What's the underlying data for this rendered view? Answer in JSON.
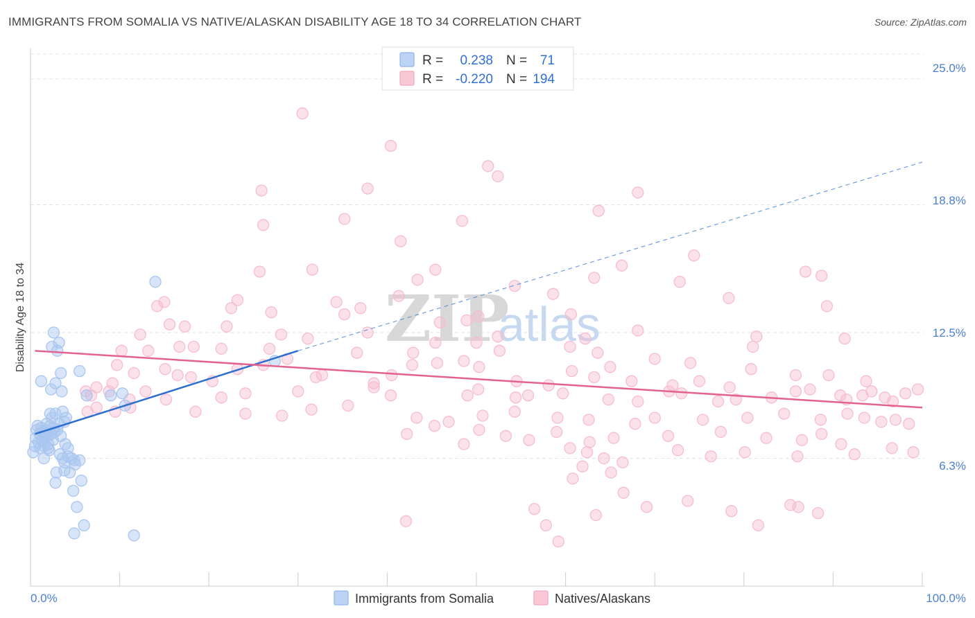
{
  "title": "IMMIGRANTS FROM SOMALIA VS NATIVE/ALASKAN DISABILITY AGE 18 TO 34 CORRELATION CHART",
  "source": "Source: ZipAtlas.com",
  "watermark": {
    "zip": "ZIP",
    "atlas": "atlas"
  },
  "legend": {
    "rows": [
      {
        "r_label": "R =",
        "r_value": "0.238",
        "n_label": "N =",
        "n_value": "71",
        "color": "#8fb5ec"
      },
      {
        "r_label": "R =",
        "r_value": "-0.220",
        "n_label": "N =",
        "n_value": "194",
        "color": "#f2a7be"
      }
    ]
  },
  "bottom_legend": [
    {
      "label": "Immigrants from Somalia",
      "color": "#8fb5ec"
    },
    {
      "label": "Natives/Alaskans",
      "color": "#f2a7be"
    }
  ],
  "chart_data": {
    "type": "scatter",
    "title": "IMMIGRANTS FROM SOMALIA VS NATIVE/ALASKAN DISABILITY AGE 18 TO 34 CORRELATION CHART",
    "xlabel": "",
    "ylabel": "Disability Age 18 to 34",
    "xlim": [
      0,
      100
    ],
    "ylim": [
      0,
      26.5
    ],
    "x_tick_labels": [
      "0.0%",
      "100.0%"
    ],
    "y_ticks": [
      6.3,
      12.5,
      18.8,
      25.0
    ],
    "y_tick_labels": [
      "6.3%",
      "12.5%",
      "18.8%",
      "25.0%"
    ],
    "grid": true,
    "legend_position": "top-center",
    "series": [
      {
        "name": "Immigrants from Somalia",
        "color": "#4a86d8",
        "fill": "#a9c6f0",
        "trend": {
          "x0": 0.5,
          "y0": 7.5,
          "x1": 30,
          "y1": 11.6,
          "dash_x1": 100,
          "dash_y1": 20.9
        },
        "points": [
          [
            0.3,
            6.6
          ],
          [
            0.5,
            6.9
          ],
          [
            0.6,
            7.3
          ],
          [
            0.7,
            7.7
          ],
          [
            0.8,
            7.9
          ],
          [
            0.9,
            7.1
          ],
          [
            1.0,
            7.5
          ],
          [
            1.1,
            6.8
          ],
          [
            1.2,
            7.8
          ],
          [
            1.3,
            7.2
          ],
          [
            1.4,
            7.6
          ],
          [
            1.5,
            6.9
          ],
          [
            1.6,
            7.3
          ],
          [
            1.7,
            7.7
          ],
          [
            1.8,
            8.0
          ],
          [
            1.9,
            7.4
          ],
          [
            2.0,
            7.0
          ],
          [
            2.1,
            6.7
          ],
          [
            2.2,
            7.9
          ],
          [
            2.3,
            7.5
          ],
          [
            2.4,
            8.3
          ],
          [
            2.5,
            7.2
          ],
          [
            2.6,
            7.8
          ],
          [
            2.7,
            7.6
          ],
          [
            2.8,
            8.5
          ],
          [
            3.0,
            7.7
          ],
          [
            3.2,
            8.0
          ],
          [
            3.4,
            7.4
          ],
          [
            1.2,
            10.1
          ],
          [
            2.3,
            9.7
          ],
          [
            2.4,
            11.8
          ],
          [
            2.6,
            12.5
          ],
          [
            2.8,
            10.0
          ],
          [
            3.0,
            11.6
          ],
          [
            3.2,
            12.0
          ],
          [
            3.4,
            10.5
          ],
          [
            3.5,
            9.6
          ],
          [
            3.6,
            8.6
          ],
          [
            3.8,
            8.1
          ],
          [
            4.0,
            8.3
          ],
          [
            3.9,
            7.0
          ],
          [
            4.2,
            6.8
          ],
          [
            3.6,
            6.3
          ],
          [
            3.8,
            6.1
          ],
          [
            4.2,
            6.4
          ],
          [
            4.6,
            6.3
          ],
          [
            4.9,
            6.2
          ],
          [
            5.0,
            6.0
          ],
          [
            5.5,
            6.2
          ],
          [
            3.8,
            5.7
          ],
          [
            4.4,
            5.6
          ],
          [
            2.9,
            5.6
          ],
          [
            2.8,
            5.1
          ],
          [
            5.7,
            5.2
          ],
          [
            4.8,
            4.7
          ],
          [
            5.2,
            3.9
          ],
          [
            6.0,
            3.0
          ],
          [
            4.9,
            2.6
          ],
          [
            11.6,
            2.5
          ],
          [
            5.5,
            10.6
          ],
          [
            6.3,
            9.4
          ],
          [
            9.0,
            9.4
          ],
          [
            10.3,
            9.5
          ],
          [
            10.6,
            8.9
          ],
          [
            14.0,
            15.0
          ],
          [
            27.4,
            11.1
          ],
          [
            2.0,
            6.8
          ],
          [
            1.5,
            6.3
          ],
          [
            3.3,
            6.5
          ],
          [
            2.2,
            8.5
          ],
          [
            1.7,
            7.5
          ]
        ]
      },
      {
        "name": "Natives/Alaskans",
        "color": "#e8709a",
        "fill": "#f6bdd0",
        "trend": {
          "x0": 0.5,
          "y0": 11.6,
          "x1": 100,
          "y1": 8.8
        },
        "points": [
          [
            30.5,
            23.3
          ],
          [
            40.4,
            21.7
          ],
          [
            52.4,
            20.2
          ],
          [
            51.3,
            20.7
          ],
          [
            25.9,
            19.5
          ],
          [
            37.8,
            19.6
          ],
          [
            68.1,
            19.4
          ],
          [
            63.7,
            18.5
          ],
          [
            35.2,
            18.1
          ],
          [
            48.4,
            18.0
          ],
          [
            26.1,
            17.8
          ],
          [
            41.5,
            17.0
          ],
          [
            74.4,
            16.3
          ],
          [
            66.3,
            15.8
          ],
          [
            25.7,
            15.5
          ],
          [
            31.6,
            15.6
          ],
          [
            45.4,
            15.6
          ],
          [
            54.3,
            14.8
          ],
          [
            58.6,
            14.4
          ],
          [
            43.4,
            15.1
          ],
          [
            63.2,
            15.2
          ],
          [
            72.8,
            15.0
          ],
          [
            86.9,
            15.5
          ],
          [
            88.7,
            15.3
          ],
          [
            23.2,
            14.1
          ],
          [
            15.0,
            14.0
          ],
          [
            14.2,
            13.8
          ],
          [
            22.5,
            13.7
          ],
          [
            27.0,
            13.5
          ],
          [
            34.3,
            14.0
          ],
          [
            37.0,
            13.7
          ],
          [
            41.3,
            14.3
          ],
          [
            50.2,
            13.3
          ],
          [
            35.2,
            13.4
          ],
          [
            48.9,
            13.1
          ],
          [
            45.9,
            13.0
          ],
          [
            60.6,
            13.4
          ],
          [
            68.1,
            12.6
          ],
          [
            78.3,
            14.2
          ],
          [
            89.3,
            13.8
          ],
          [
            15.6,
            12.9
          ],
          [
            12.3,
            12.4
          ],
          [
            17.3,
            12.8
          ],
          [
            22.0,
            12.8
          ],
          [
            28.1,
            12.4
          ],
          [
            31.1,
            12.2
          ],
          [
            37.8,
            12.5
          ],
          [
            52.4,
            12.3
          ],
          [
            45.4,
            12.0
          ],
          [
            50.0,
            12.0
          ],
          [
            62.2,
            12.2
          ],
          [
            16.7,
            11.8
          ],
          [
            18.3,
            11.8
          ],
          [
            21.4,
            11.7
          ],
          [
            10.2,
            11.6
          ],
          [
            13.2,
            11.6
          ],
          [
            26.8,
            11.7
          ],
          [
            28.8,
            11.2
          ],
          [
            36.6,
            11.5
          ],
          [
            42.9,
            11.5
          ],
          [
            48.6,
            11.1
          ],
          [
            52.6,
            11.6
          ],
          [
            60.5,
            11.8
          ],
          [
            63.6,
            11.5
          ],
          [
            70.0,
            11.2
          ],
          [
            74.0,
            11.0
          ],
          [
            81.0,
            11.8
          ],
          [
            81.4,
            12.3
          ],
          [
            91.3,
            12.2
          ],
          [
            9.7,
            10.9
          ],
          [
            11.6,
            10.5
          ],
          [
            15.1,
            10.7
          ],
          [
            16.5,
            10.4
          ],
          [
            18.0,
            10.3
          ],
          [
            20.4,
            10.1
          ],
          [
            23.2,
            10.7
          ],
          [
            26.1,
            10.9
          ],
          [
            32.0,
            10.3
          ],
          [
            32.7,
            10.4
          ],
          [
            38.5,
            10.0
          ],
          [
            40.5,
            10.4
          ],
          [
            42.8,
            10.9
          ],
          [
            45.6,
            11.0
          ],
          [
            50.3,
            10.8
          ],
          [
            54.5,
            10.1
          ],
          [
            58.1,
            9.9
          ],
          [
            60.7,
            10.6
          ],
          [
            63.2,
            10.3
          ],
          [
            65.0,
            10.8
          ],
          [
            67.4,
            10.1
          ],
          [
            72.0,
            9.9
          ],
          [
            75.0,
            10.1
          ],
          [
            78.4,
            9.8
          ],
          [
            80.8,
            10.7
          ],
          [
            85.8,
            10.4
          ],
          [
            89.5,
            10.4
          ],
          [
            93.7,
            10.1
          ],
          [
            9.2,
            10.0
          ],
          [
            8.8,
            9.6
          ],
          [
            6.2,
            9.6
          ],
          [
            6.8,
            9.4
          ],
          [
            7.4,
            9.8
          ],
          [
            12.9,
            9.6
          ],
          [
            11.1,
            9.2
          ],
          [
            15.2,
            9.2
          ],
          [
            21.4,
            9.3
          ],
          [
            24.1,
            9.5
          ],
          [
            30.0,
            9.6
          ],
          [
            38.5,
            9.8
          ],
          [
            40.4,
            9.4
          ],
          [
            49.0,
            9.4
          ],
          [
            50.2,
            9.7
          ],
          [
            54.4,
            9.3
          ],
          [
            55.8,
            9.4
          ],
          [
            59.7,
            9.5
          ],
          [
            64.8,
            9.2
          ],
          [
            68.1,
            9.1
          ],
          [
            71.6,
            9.6
          ],
          [
            73.0,
            9.5
          ],
          [
            77.1,
            9.1
          ],
          [
            79.1,
            9.2
          ],
          [
            83.1,
            9.3
          ],
          [
            85.8,
            9.6
          ],
          [
            87.4,
            9.7
          ],
          [
            90.8,
            9.4
          ],
          [
            91.5,
            9.2
          ],
          [
            93.3,
            9.4
          ],
          [
            94.3,
            9.6
          ],
          [
            95.8,
            9.3
          ],
          [
            96.7,
            9.1
          ],
          [
            98.1,
            9.5
          ],
          [
            99.5,
            9.7
          ],
          [
            6.4,
            8.6
          ],
          [
            7.4,
            8.8
          ],
          [
            9.5,
            8.6
          ],
          [
            11.2,
            8.8
          ],
          [
            18.5,
            8.6
          ],
          [
            24.1,
            8.5
          ],
          [
            28.2,
            8.4
          ],
          [
            31.5,
            8.7
          ],
          [
            35.6,
            8.9
          ],
          [
            43.3,
            8.3
          ],
          [
            46.9,
            8.1
          ],
          [
            50.7,
            8.4
          ],
          [
            54.3,
            8.6
          ],
          [
            59.1,
            8.3
          ],
          [
            62.6,
            8.2
          ],
          [
            67.8,
            8.0
          ],
          [
            70.0,
            8.3
          ],
          [
            75.4,
            8.2
          ],
          [
            80.4,
            8.3
          ],
          [
            84.5,
            8.5
          ],
          [
            88.6,
            8.2
          ],
          [
            91.6,
            8.5
          ],
          [
            93.5,
            8.3
          ],
          [
            95.4,
            8.1
          ],
          [
            97.0,
            8.2
          ],
          [
            42.2,
            7.5
          ],
          [
            45.3,
            7.9
          ],
          [
            50.3,
            7.7
          ],
          [
            53.3,
            7.4
          ],
          [
            59.0,
            7.6
          ],
          [
            62.7,
            7.1
          ],
          [
            65.4,
            7.3
          ],
          [
            71.5,
            7.4
          ],
          [
            77.4,
            7.6
          ],
          [
            82.5,
            7.3
          ],
          [
            86.5,
            7.2
          ],
          [
            88.7,
            7.5
          ],
          [
            90.9,
            7.0
          ],
          [
            98.5,
            8.0
          ],
          [
            48.6,
            7.0
          ],
          [
            55.9,
            7.2
          ],
          [
            60.5,
            6.8
          ],
          [
            62.4,
            6.6
          ],
          [
            64.3,
            6.3
          ],
          [
            66.4,
            6.1
          ],
          [
            72.6,
            6.7
          ],
          [
            76.3,
            6.4
          ],
          [
            80.1,
            6.6
          ],
          [
            86.0,
            6.4
          ],
          [
            92.4,
            6.5
          ],
          [
            96.6,
            6.8
          ],
          [
            99.0,
            6.6
          ],
          [
            65.1,
            5.6
          ],
          [
            60.8,
            5.3
          ],
          [
            61.9,
            5.9
          ],
          [
            66.5,
            4.6
          ],
          [
            69.1,
            3.9
          ],
          [
            73.7,
            4.2
          ],
          [
            78.6,
            3.7
          ],
          [
            81.6,
            3.0
          ],
          [
            85.2,
            4.0
          ],
          [
            86.1,
            3.9
          ],
          [
            88.3,
            3.6
          ],
          [
            63.4,
            3.5
          ],
          [
            56.5,
            3.8
          ],
          [
            59.2,
            2.2
          ],
          [
            57.8,
            3.0
          ],
          [
            42.1,
            3.2
          ]
        ]
      }
    ]
  }
}
